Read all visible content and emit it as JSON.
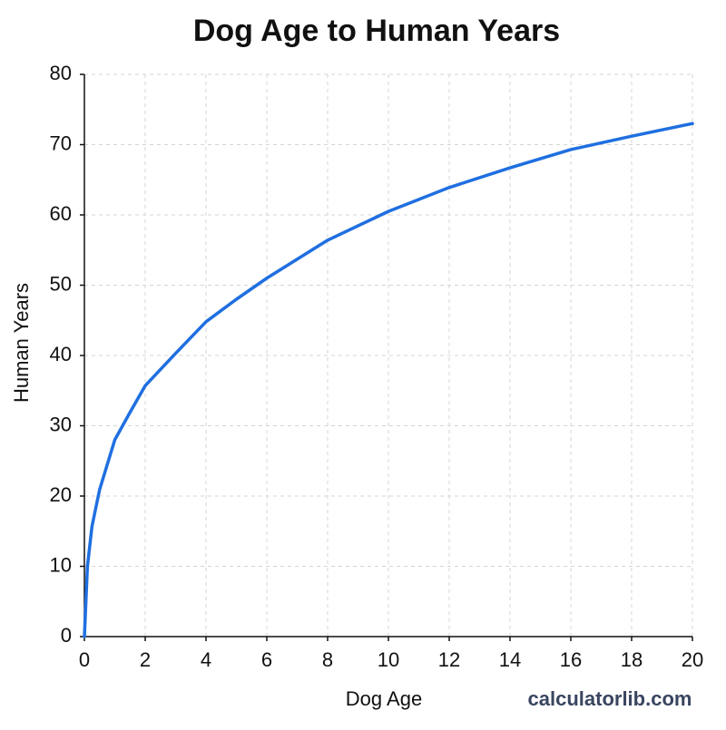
{
  "chart_data": {
    "type": "line",
    "title": "Dog Age to Human Years",
    "x_label": "Dog Age",
    "y_label": "Human Years",
    "watermark": "calculatorlib.com",
    "x": [
      0,
      0.1,
      0.25,
      0.5,
      1,
      1.5,
      2,
      3,
      4,
      5,
      6,
      8,
      10,
      12,
      14,
      16,
      18,
      20
    ],
    "series": [
      {
        "name": "Human Years",
        "color": "#1f6fe0",
        "values": [
          0,
          10,
          15.7,
          20.9,
          28,
          31.9,
          35.7,
          40.3,
          44.8,
          48,
          51,
          56.4,
          60.5,
          63.9,
          66.7,
          69.3,
          71.2,
          73
        ]
      }
    ],
    "xlim": [
      0,
      20
    ],
    "ylim": [
      0,
      80
    ],
    "xticks": [
      0,
      2,
      4,
      6,
      8,
      10,
      12,
      14,
      16,
      18,
      20
    ],
    "yticks": [
      0,
      10,
      20,
      30,
      40,
      50,
      60,
      70,
      80
    ],
    "grid": true
  }
}
